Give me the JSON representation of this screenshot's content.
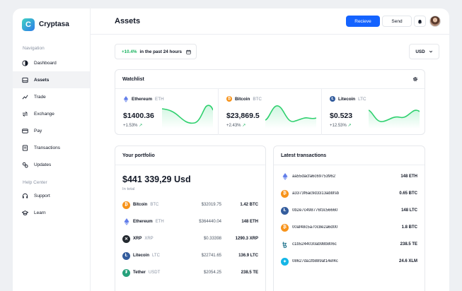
{
  "brand": {
    "name": "Cryptasa"
  },
  "sidebar": {
    "nav_heading": "Navigation",
    "help_heading": "Help Center",
    "items": [
      {
        "label": "Dashboard",
        "icon": "dashboard-icon"
      },
      {
        "label": "Assets",
        "icon": "assets-icon"
      },
      {
        "label": "Trade",
        "icon": "trade-icon"
      },
      {
        "label": "Exchange",
        "icon": "exchange-icon"
      },
      {
        "label": "Pay",
        "icon": "card-icon"
      },
      {
        "label": "Transactions",
        "icon": "transactions-icon"
      },
      {
        "label": "Updates",
        "icon": "updates-icon"
      }
    ],
    "help_items": [
      {
        "label": "Support",
        "icon": "support-icon"
      },
      {
        "label": "Learn",
        "icon": "learn-icon"
      }
    ],
    "active": "Assets"
  },
  "header": {
    "title": "Assets",
    "receive_label": "Recieve",
    "send_label": "Send"
  },
  "summary": {
    "change": "+10.4%",
    "text": "in the past 24 hours"
  },
  "currency": {
    "selected": "USD"
  },
  "watchlist": {
    "title": "Watchlist",
    "coins": [
      {
        "name": "Ethereum",
        "symbol": "ETH",
        "price": "$1400.36",
        "change": "+1.53%",
        "color": "#627eea"
      },
      {
        "name": "Bitcoin",
        "symbol": "BTC",
        "price": "$23,869.5",
        "change": "+2.43%",
        "color": "#f7931a"
      },
      {
        "name": "Litecoin",
        "symbol": "LTC",
        "price": "$0.523",
        "change": "+12.53%",
        "color": "#345d9d"
      }
    ]
  },
  "portfolio": {
    "title": "Your portfolio",
    "total": "$441 339,29 Usd",
    "total_label": "In total",
    "rows": [
      {
        "name": "Bitcoin",
        "symbol": "BTC",
        "price": "$32019.75",
        "holding": "1.42 BTC",
        "color": "#f7931a",
        "icon": "bitcoin-icon"
      },
      {
        "name": "Ethereum",
        "symbol": "ETH",
        "price": "$364440.04",
        "holding": "148 ETH",
        "color": "#627eea",
        "icon": "ethereum-icon"
      },
      {
        "name": "XRP",
        "symbol": "XRP",
        "price": "$0.33398",
        "holding": "1290.3 XRP",
        "color": "#23292f",
        "icon": "xrp-icon"
      },
      {
        "name": "Litecoin",
        "symbol": "LTC",
        "price": "$22741.65",
        "holding": "136.9 LTC",
        "color": "#345d9d",
        "icon": "litecoin-icon"
      },
      {
        "name": "Tether",
        "symbol": "USDT",
        "price": "$2054.25",
        "holding": "238.5 TE",
        "color": "#26a17b",
        "icon": "tether-icon"
      }
    ]
  },
  "transactions": {
    "title": "Latest transactions",
    "rows": [
      {
        "hash": "aa55dacfa6c69753962",
        "amount": "148 ETH",
        "color": "#627eea",
        "icon": "ethereum-icon"
      },
      {
        "hash": "a3373f6ac9d3313abbfsb",
        "amount": "0.65 BTC",
        "color": "#f7931a",
        "icon": "bitcoin-icon"
      },
      {
        "name": "",
        "hash": "0b2e7c498776f3c56660",
        "amount": "148 LTC",
        "color": "#345d9d",
        "icon": "litecoin-icon"
      },
      {
        "hash": "00af48c5a70c8e2a6d00",
        "amount": "1.8 BTC",
        "color": "#f7931a",
        "icon": "bitcoin-icon"
      },
      {
        "hash": "c1b5244030ab98b806c",
        "amount": "238.5 TE",
        "color": "#2a7a92",
        "icon": "tezos-icon"
      },
      {
        "hash": "08627da1fb889af14ef4c",
        "amount": "24.6 XLM",
        "color": "#14b6e7",
        "icon": "stellar-icon"
      }
    ]
  },
  "colors": {
    "accent": "#1463ff",
    "positive": "#19b35f"
  }
}
